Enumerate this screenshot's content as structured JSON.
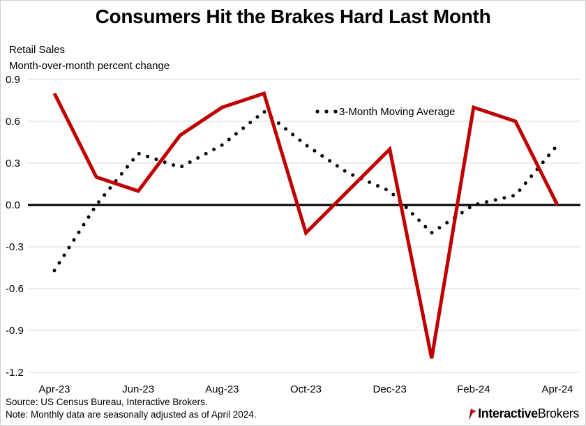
{
  "chart_data": {
    "type": "line",
    "title": "Consumers Hit the Brakes Hard Last Month",
    "ylabel_line1": "Retail Sales",
    "ylabel_line2": "Month-over-month percent change",
    "ylim": [
      -1.2,
      0.9
    ],
    "yticks": [
      0.9,
      0.6,
      0.3,
      0.0,
      -0.3,
      -0.6,
      -0.9,
      -1.2
    ],
    "ytick_labels": [
      "0.9",
      "0.6",
      "0.3",
      "0.0",
      "-0.3",
      "-0.6",
      "-0.9",
      "-1.2"
    ],
    "x": [
      "Apr-23",
      "May-23",
      "Jun-23",
      "Jul-23",
      "Aug-23",
      "Sep-23",
      "Oct-23",
      "Nov-23",
      "Dec-23",
      "Jan-24",
      "Feb-24",
      "Mar-24",
      "Apr-24"
    ],
    "xtick_labels": [
      "Apr-23",
      "Jun-23",
      "Aug-23",
      "Oct-23",
      "Dec-23",
      "Feb-24",
      "Apr-24"
    ],
    "xtick_indices": [
      0,
      2,
      4,
      6,
      8,
      10,
      12
    ],
    "series": [
      {
        "name": "Retail Sales",
        "style": "solid",
        "color": "#c00000",
        "values": [
          0.8,
          0.2,
          0.1,
          0.5,
          0.7,
          0.8,
          -0.2,
          0.1,
          0.4,
          -1.1,
          0.7,
          0.6,
          0.0
        ]
      },
      {
        "name": "3-Month Moving Average",
        "style": "dotted",
        "color": "#000000",
        "values": [
          -0.47,
          0.0,
          0.37,
          0.27,
          0.43,
          0.67,
          0.43,
          0.23,
          0.1,
          -0.2,
          0.0,
          0.07,
          0.43
        ]
      }
    ],
    "legend": {
      "label": "3-Month Moving Average",
      "placement": "top-right"
    },
    "grid": true,
    "zero_line": true
  },
  "footer": {
    "source": "Source: US Census Bureau, Interactive Brokers.",
    "note": "Note: Monthly data are seasonally adjusted as of April 2024."
  },
  "logo": {
    "bold": "Interactive",
    "light": "Brokers"
  },
  "colors": {
    "accent": "#c00000",
    "grid": "#d9d9d9",
    "axis": "#000000"
  }
}
